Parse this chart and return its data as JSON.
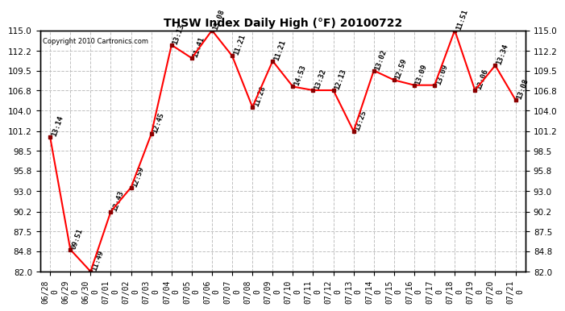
{
  "title": "THSW Index Daily High (°F) 20100722",
  "copyright": "Copyright 2010 Cartronics.com",
  "dates": [
    "06/28\n0",
    "06/29\n0",
    "06/30\n0",
    "07/01\n0",
    "07/02\n0",
    "07/03\n0",
    "07/04\n0",
    "07/05\n0",
    "07/06\n0",
    "07/07\n0",
    "07/08\n0",
    "07/09\n0",
    "07/10\n0",
    "07/11\n0",
    "07/12\n0",
    "07/13\n0",
    "07/14\n0",
    "07/15\n0",
    "07/16\n0",
    "07/17\n0",
    "07/18\n0",
    "07/19\n0",
    "07/20\n0",
    "07/21\n0"
  ],
  "values": [
    100.4,
    85.0,
    82.0,
    90.2,
    93.5,
    100.8,
    113.0,
    111.2,
    115.0,
    111.5,
    104.5,
    110.8,
    107.3,
    106.8,
    106.8,
    101.2,
    109.5,
    108.2,
    107.5,
    107.5,
    115.0,
    106.8,
    110.2,
    105.5
  ],
  "label_times": [
    "13:14",
    "09:51",
    "11:49",
    "12:43",
    "12:59",
    "12:45",
    "13:13",
    "11:41",
    "13:08",
    "11:21",
    "11:28",
    "11:21",
    "14:53",
    "13:32",
    "12:13",
    "13:25",
    "13:02",
    "12:59",
    "13:09",
    "13:09",
    "11:51",
    "12:06",
    "13:34",
    "13:08"
  ],
  "ylim": [
    82.0,
    115.0
  ],
  "yticks": [
    82.0,
    84.8,
    87.5,
    90.2,
    93.0,
    95.8,
    98.5,
    101.2,
    104.0,
    106.8,
    109.5,
    112.2,
    115.0
  ],
  "line_color": "red",
  "marker_color": "darkred",
  "bg_color": "#ffffff",
  "grid_color": "#c0c0c0",
  "title_fontsize": 10,
  "label_fontsize": 6.5,
  "tick_fontsize": 7.5
}
